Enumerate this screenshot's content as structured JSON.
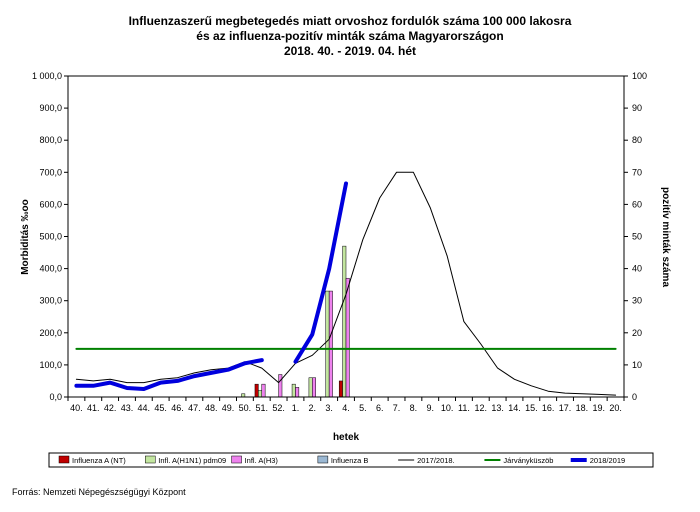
{
  "chart_data": {
    "type": "bar+line",
    "title_lines": [
      "Influenzaszerű megbetegedés miatt orvoshoz fordulók száma 100 000 lakosra",
      "és az influenza-pozitív minták száma Magyarországon",
      "2018. 40. - 2019. 04. hét"
    ],
    "xlabel": "hetek",
    "ylabel_left": "Morbiditás ‰oo",
    "ylabel_right": "pozitív minták száma",
    "y_left": {
      "ylim": [
        0,
        1000
      ],
      "ticks": [
        "0,0",
        "100,0",
        "200,0",
        "300,0",
        "400,0",
        "500,0",
        "600,0",
        "700,0",
        "800,0",
        "900,0",
        "1 000,0"
      ]
    },
    "y_right": {
      "ylim": [
        0,
        100
      ],
      "ticks": [
        "0",
        "10",
        "20",
        "30",
        "40",
        "50",
        "60",
        "70",
        "80",
        "90",
        "100"
      ]
    },
    "categories": [
      "40.",
      "41.",
      "42.",
      "43.",
      "44.",
      "45.",
      "46.",
      "47.",
      "48.",
      "49.",
      "50.",
      "51.",
      "52.",
      "1.",
      "2.",
      "3.",
      "4.",
      "5.",
      "6.",
      "7.",
      "8.",
      "9.",
      "10.",
      "11.",
      "12.",
      "13.",
      "14.",
      "15.",
      "16.",
      "17.",
      "18.",
      "19.",
      "20."
    ],
    "bar_series": [
      {
        "name": "Influenza A (NT)",
        "color": "#c00000",
        "values": [
          0,
          0,
          0,
          0,
          0,
          0,
          0,
          0,
          0,
          0,
          0,
          4,
          0,
          0,
          0,
          0,
          5,
          0,
          0,
          0,
          0,
          0,
          0,
          0,
          0,
          0,
          0,
          0,
          0,
          0,
          0,
          0,
          0
        ]
      },
      {
        "name": "Infl. A(H1N1) pdm09",
        "color": "#c3e6a0",
        "values": [
          0,
          0,
          0,
          0,
          0,
          0,
          0,
          0,
          0,
          0,
          1,
          2,
          0,
          4,
          6,
          33,
          47,
          0,
          0,
          0,
          0,
          0,
          0,
          0,
          0,
          0,
          0,
          0,
          0,
          0,
          0,
          0,
          0
        ]
      },
      {
        "name": "Infl. A(H3)",
        "color": "#ee82ee",
        "values": [
          0,
          0,
          0,
          0,
          0,
          0,
          0,
          0,
          0,
          0,
          0,
          4,
          7,
          3,
          6,
          33,
          37,
          0,
          0,
          0,
          0,
          0,
          0,
          0,
          0,
          0,
          0,
          0,
          0,
          0,
          0,
          0,
          0
        ]
      },
      {
        "name": "Influenza B",
        "color": "#9bb8d3",
        "values": [
          0,
          0,
          0,
          0,
          0,
          0,
          0,
          0,
          0,
          0,
          0,
          0,
          0,
          0,
          0,
          0,
          0,
          0,
          0,
          0,
          0,
          0,
          0,
          0,
          0,
          0,
          0,
          0,
          0,
          0,
          0,
          0,
          0
        ]
      }
    ],
    "line_series": [
      {
        "name": "2017/2018.",
        "color": "#000000",
        "width": 1,
        "values": [
          55,
          50,
          55,
          45,
          45,
          55,
          60,
          75,
          85,
          90,
          110,
          90,
          45,
          105,
          130,
          180,
          320,
          490,
          620,
          700,
          700,
          590,
          440,
          235,
          165,
          90,
          55,
          35,
          18,
          12,
          10,
          8,
          6
        ]
      },
      {
        "name": "Járványküszöb",
        "color": "#008000",
        "width": 2,
        "values": [
          150,
          150,
          150,
          150,
          150,
          150,
          150,
          150,
          150,
          150,
          150,
          150,
          150,
          150,
          150,
          150,
          150,
          150,
          150,
          150,
          150,
          150,
          150,
          150,
          150,
          150,
          150,
          150,
          150,
          150,
          150,
          150,
          150
        ]
      },
      {
        "name": "2018/2019",
        "color": "#0000dd",
        "width": 4,
        "values": [
          35,
          35,
          45,
          28,
          25,
          45,
          50,
          65,
          75,
          85,
          105,
          115,
          null,
          110,
          195,
          400,
          665,
          null,
          null,
          null,
          null,
          null,
          null,
          null,
          null,
          null,
          null,
          null,
          null,
          null,
          null,
          null,
          null
        ]
      }
    ],
    "legend_position": "bottom"
  },
  "source_text": "Forrás: Nemzeti Népegészségügyi Központ"
}
